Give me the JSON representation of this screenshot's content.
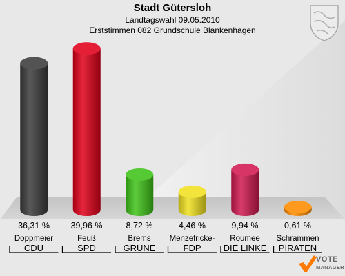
{
  "header": {
    "title": "Stadt Gütersloh",
    "subtitle": "Landtagswahl 09.05.2010",
    "subtitle2": "Erststimmen 082 Grundschule Blankenhagen"
  },
  "chart_data": {
    "type": "bar",
    "title": "Stadt Gütersloh",
    "xlabel": "",
    "ylabel": "",
    "ylim": [
      0,
      40
    ],
    "grid": false,
    "categories": [
      "CDU",
      "SPD",
      "GRÜNE",
      "FDP",
      "DIE LINKE",
      "PIRATEN"
    ],
    "candidates": [
      "Doppmeier",
      "Feuß",
      "Brems",
      "Menzefricke-",
      "Roumee",
      "Schrammen"
    ],
    "values": [
      36.31,
      39.96,
      8.72,
      4.46,
      9.94,
      0.61
    ],
    "value_labels": [
      "36,31 %",
      "39,96 %",
      "8,72 %",
      "4,46 %",
      "9,94 %",
      "0,61 %"
    ],
    "colors": [
      "#3c3c3c",
      "#e0001a",
      "#3fc318",
      "#f0e020",
      "#d01a50",
      "#ff8c00"
    ]
  },
  "logo": {
    "line1": "VOTE",
    "line2": "MANAGER",
    "icon": "checkmark-icon"
  },
  "emblem": {
    "icon": "coat-of-arms-icon"
  }
}
